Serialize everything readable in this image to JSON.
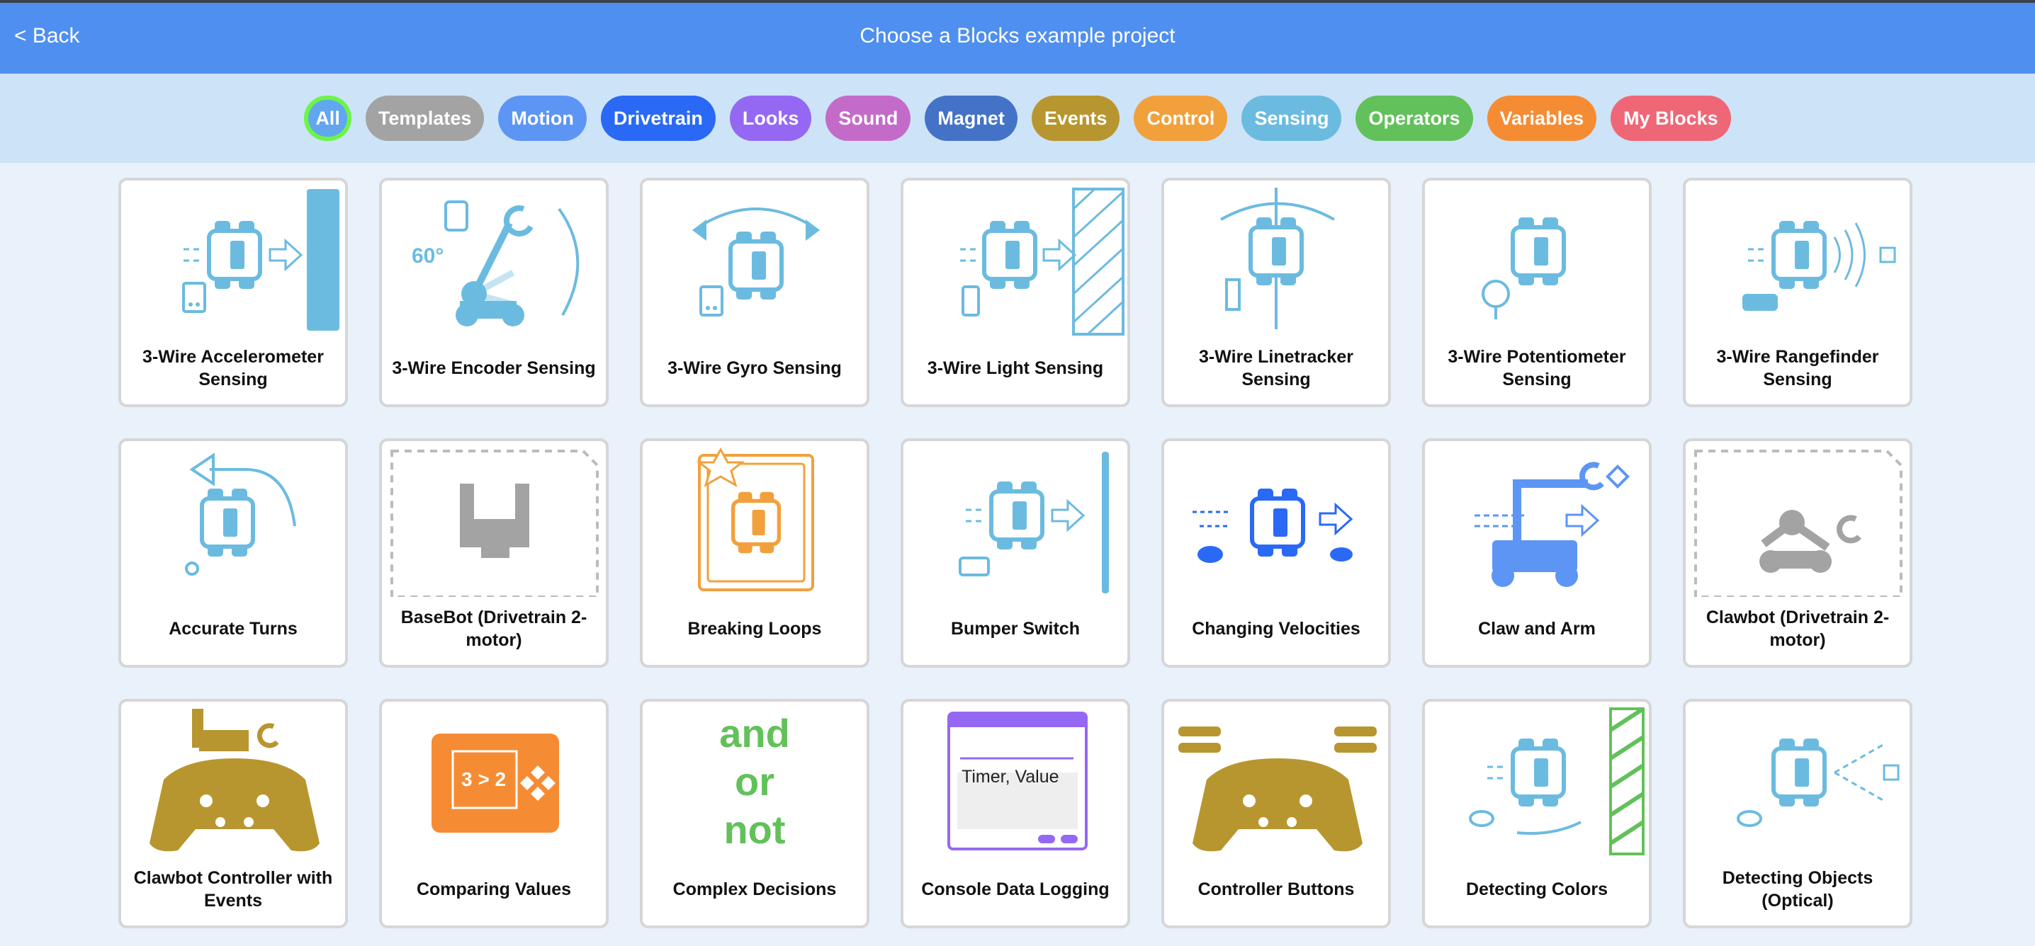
{
  "header": {
    "back_label": "< Back",
    "title": "Choose a Blocks example project"
  },
  "filters": [
    {
      "label": "All",
      "color": "#62a6f0",
      "active": true
    },
    {
      "label": "Templates",
      "color": "#a3a3a3"
    },
    {
      "label": "Motion",
      "color": "#5d95f5"
    },
    {
      "label": "Drivetrain",
      "color": "#2a69f5"
    },
    {
      "label": "Looks",
      "color": "#9568f3"
    },
    {
      "label": "Sound",
      "color": "#c46bc9"
    },
    {
      "label": "Magnet",
      "color": "#4472c6"
    },
    {
      "label": "Events",
      "color": "#b8962f"
    },
    {
      "label": "Control",
      "color": "#f2a03c"
    },
    {
      "label": "Sensing",
      "color": "#6bbbe0"
    },
    {
      "label": "Operators",
      "color": "#62c15a"
    },
    {
      "label": "Variables",
      "color": "#f58c34"
    },
    {
      "label": "My Blocks",
      "color": "#ef6777"
    }
  ],
  "projects": [
    {
      "label": "3-Wire Accelerometer Sensing",
      "icon": "robot-wall",
      "color": "#6bbbe0"
    },
    {
      "label": "3-Wire Encoder Sensing",
      "icon": "arm-angle",
      "color": "#6bbbe0",
      "overlay": "60°"
    },
    {
      "label": "3-Wire Gyro Sensing",
      "icon": "robot-rotate",
      "color": "#6bbbe0"
    },
    {
      "label": "3-Wire Light Sensing",
      "icon": "robot-hatched-wall",
      "color": "#6bbbe0"
    },
    {
      "label": "3-Wire Linetracker Sensing",
      "icon": "robot-line",
      "color": "#6bbbe0"
    },
    {
      "label": "3-Wire Potentiometer Sensing",
      "icon": "robot-knob",
      "color": "#6bbbe0"
    },
    {
      "label": "3-Wire Rangefinder Sensing",
      "icon": "robot-sonar",
      "color": "#6bbbe0"
    },
    {
      "label": "Accurate Turns",
      "icon": "robot-turn",
      "color": "#6bbbe0"
    },
    {
      "label": "BaseBot (Drivetrain 2-motor)",
      "icon": "template-basebot",
      "color": "#a3a3a3"
    },
    {
      "label": "Breaking Loops",
      "icon": "loop-robot",
      "color": "#f2a03c"
    },
    {
      "label": "Bumper Switch",
      "icon": "robot-bumper",
      "color": "#6bbbe0"
    },
    {
      "label": "Changing Velocities",
      "icon": "robot-speed",
      "color": "#2a69f5"
    },
    {
      "label": "Claw and Arm",
      "icon": "claw-arm",
      "color": "#5d95f5"
    },
    {
      "label": "Clawbot (Drivetrain 2-motor)",
      "icon": "template-clawbot",
      "color": "#a3a3a3"
    },
    {
      "label": "Clawbot Controller with Events",
      "icon": "controller-clawbot",
      "color": "#b8962f"
    },
    {
      "label": "Comparing Values",
      "icon": "brain-screen",
      "color": "#f58c34",
      "overlay": "3 > 2"
    },
    {
      "label": "Complex Decisions",
      "icon": "logic-words",
      "color": "#62c15a",
      "words": [
        "and",
        "or",
        "not"
      ]
    },
    {
      "label": "Console Data Logging",
      "icon": "console-window",
      "color": "#9568f3",
      "overlay": "Timer, Value"
    },
    {
      "label": "Controller Buttons",
      "icon": "controller",
      "color": "#b8962f"
    },
    {
      "label": "Detecting Colors",
      "icon": "robot-color",
      "color": "#6bbbe0"
    },
    {
      "label": "Detecting Objects (Optical)",
      "icon": "robot-optical",
      "color": "#6bbbe0"
    }
  ]
}
